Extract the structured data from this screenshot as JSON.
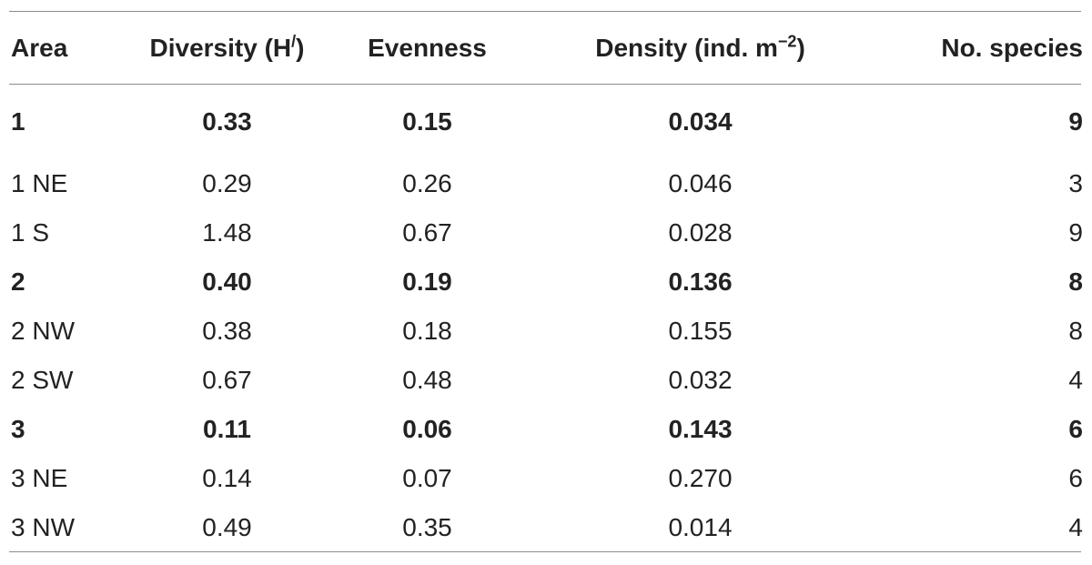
{
  "table": {
    "headers": {
      "area": "Area",
      "diversity": "Diversity (H",
      "diversity_sup": "/",
      "diversity_close": ")",
      "evenness": "Evenness",
      "density": "Density (ind. m",
      "density_sup": "−2",
      "density_close": ")",
      "species": "No. species"
    },
    "rows": [
      {
        "area": "1",
        "diversity": "0.33",
        "evenness": "0.15",
        "density": "0.034",
        "species": "9",
        "bold": true
      },
      {
        "area": "1 NE",
        "diversity": "0.29",
        "evenness": "0.26",
        "density": "0.046",
        "species": "3",
        "bold": false
      },
      {
        "area": "1 S",
        "diversity": "1.48",
        "evenness": "0.67",
        "density": "0.028",
        "species": "9",
        "bold": false
      },
      {
        "area": "2",
        "diversity": "0.40",
        "evenness": "0.19",
        "density": "0.136",
        "species": "8",
        "bold": true
      },
      {
        "area": "2 NW",
        "diversity": "0.38",
        "evenness": "0.18",
        "density": "0.155",
        "species": "8",
        "bold": false
      },
      {
        "area": "2 SW",
        "diversity": "0.67",
        "evenness": "0.48",
        "density": "0.032",
        "species": "4",
        "bold": false
      },
      {
        "area": "3",
        "diversity": "0.11",
        "evenness": "0.06",
        "density": "0.143",
        "species": "6",
        "bold": true
      },
      {
        "area": "3 NE",
        "diversity": "0.14",
        "evenness": "0.07",
        "density": "0.270",
        "species": "6",
        "bold": false
      },
      {
        "area": "3 NW",
        "diversity": "0.49",
        "evenness": "0.35",
        "density": "0.014",
        "species": "4",
        "bold": false
      }
    ]
  }
}
